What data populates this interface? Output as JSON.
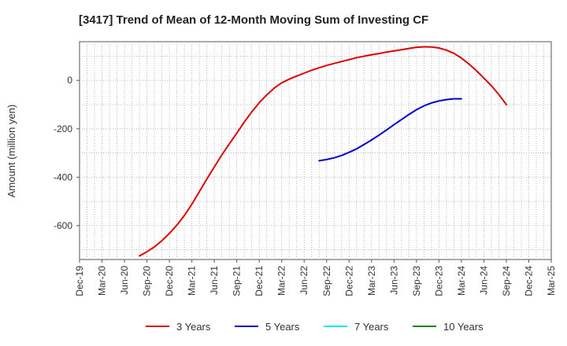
{
  "chart_data": {
    "type": "line",
    "title": "[3417]  Trend of Mean of 12-Month Moving Sum of Investing CF",
    "xlabel": "",
    "ylabel": "Amount (million yen)",
    "x_ticks": [
      "Dec-19",
      "Mar-20",
      "Jun-20",
      "Sep-20",
      "Dec-20",
      "Mar-21",
      "Jun-21",
      "Sep-21",
      "Dec-21",
      "Mar-22",
      "Jun-22",
      "Sep-22",
      "Dec-22",
      "Mar-23",
      "Jun-23",
      "Sep-23",
      "Dec-23",
      "Mar-24",
      "Jun-24",
      "Sep-24",
      "Dec-24",
      "Mar-25"
    ],
    "y_ticks": [
      0,
      -200,
      -400,
      -600
    ],
    "ylim": [
      -740,
      160
    ],
    "grid": true,
    "legend_position": "bottom",
    "series": [
      {
        "name": "3 Years",
        "color": "#dd0000",
        "points": [
          [
            "Aug-20",
            -725
          ],
          [
            "Sep-20",
            -708
          ],
          [
            "Oct-20",
            -688
          ],
          [
            "Nov-20",
            -662
          ],
          [
            "Dec-20",
            -632
          ],
          [
            "Jan-21",
            -598
          ],
          [
            "Feb-21",
            -558
          ],
          [
            "Mar-21",
            -512
          ],
          [
            "Apr-21",
            -460
          ],
          [
            "May-21",
            -408
          ],
          [
            "Jun-21",
            -358
          ],
          [
            "Jul-21",
            -308
          ],
          [
            "Aug-21",
            -262
          ],
          [
            "Sep-21",
            -218
          ],
          [
            "Oct-21",
            -172
          ],
          [
            "Nov-21",
            -130
          ],
          [
            "Dec-21",
            -92
          ],
          [
            "Jan-22",
            -60
          ],
          [
            "Feb-22",
            -32
          ],
          [
            "Mar-22",
            -10
          ],
          [
            "Apr-22",
            5
          ],
          [
            "May-22",
            18
          ],
          [
            "Jun-22",
            30
          ],
          [
            "Jul-22",
            42
          ],
          [
            "Aug-22",
            52
          ],
          [
            "Sep-22",
            62
          ],
          [
            "Oct-22",
            70
          ],
          [
            "Nov-22",
            78
          ],
          [
            "Dec-22",
            86
          ],
          [
            "Jan-23",
            94
          ],
          [
            "Feb-23",
            100
          ],
          [
            "Mar-23",
            106
          ],
          [
            "Apr-23",
            111
          ],
          [
            "May-23",
            117
          ],
          [
            "Jun-23",
            122
          ],
          [
            "Jul-23",
            127
          ],
          [
            "Aug-23",
            132
          ],
          [
            "Sep-23",
            137
          ],
          [
            "Oct-23",
            139
          ],
          [
            "Nov-23",
            138
          ],
          [
            "Dec-23",
            134
          ],
          [
            "Jan-24",
            125
          ],
          [
            "Feb-24",
            112
          ],
          [
            "Mar-24",
            92
          ],
          [
            "Apr-24",
            68
          ],
          [
            "May-24",
            40
          ],
          [
            "Jun-24",
            10
          ],
          [
            "Jul-24",
            -22
          ],
          [
            "Aug-24",
            -58
          ],
          [
            "Sep-24",
            -100
          ]
        ]
      },
      {
        "name": "5 Years",
        "color": "#0000cc",
        "points": [
          [
            "Aug-22",
            -332
          ],
          [
            "Sep-22",
            -327
          ],
          [
            "Oct-22",
            -320
          ],
          [
            "Nov-22",
            -310
          ],
          [
            "Dec-22",
            -297
          ],
          [
            "Jan-23",
            -283
          ],
          [
            "Feb-23",
            -265
          ],
          [
            "Mar-23",
            -246
          ],
          [
            "Apr-23",
            -226
          ],
          [
            "May-23",
            -205
          ],
          [
            "Jun-23",
            -183
          ],
          [
            "Jul-23",
            -162
          ],
          [
            "Aug-23",
            -141
          ],
          [
            "Sep-23",
            -121
          ],
          [
            "Oct-23",
            -105
          ],
          [
            "Nov-23",
            -93
          ],
          [
            "Dec-23",
            -85
          ],
          [
            "Jan-24",
            -79
          ],
          [
            "Feb-24",
            -76
          ],
          [
            "Mar-24",
            -76
          ]
        ]
      },
      {
        "name": "7 Years",
        "color": "#00e5ee",
        "points": []
      },
      {
        "name": "10 Years",
        "color": "#118811",
        "points": []
      }
    ]
  }
}
